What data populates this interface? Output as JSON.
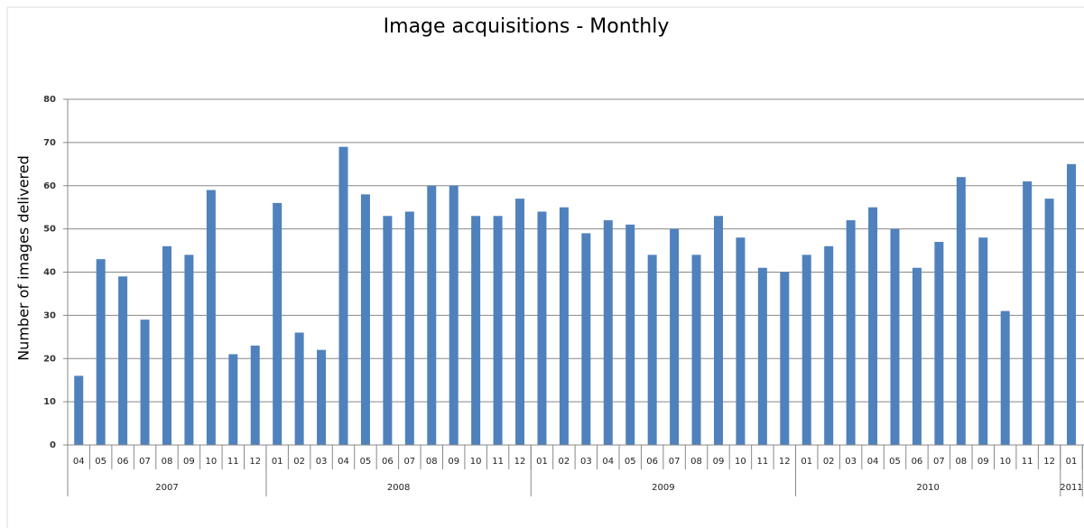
{
  "chart_data": {
    "type": "bar",
    "title": "Image acquisitions - Monthly",
    "y_label": "Number of images delivered",
    "color": "#4f81bd",
    "ylim": [
      0,
      80
    ],
    "yticks": [
      0,
      10,
      20,
      30,
      40,
      50,
      60,
      70,
      80
    ],
    "grid": true,
    "groups": [
      {
        "name": "2007",
        "categories": [
          "04",
          "05",
          "06",
          "07",
          "08",
          "09",
          "10",
          "11",
          "12"
        ],
        "values": [
          16,
          43,
          39,
          29,
          46,
          44,
          59,
          21,
          23
        ]
      },
      {
        "name": "2008",
        "categories": [
          "01",
          "02",
          "03",
          "04",
          "05",
          "06",
          "07",
          "08",
          "09",
          "10",
          "11",
          "12"
        ],
        "values": [
          56,
          26,
          22,
          69,
          58,
          53,
          54,
          60,
          60,
          53,
          53,
          57
        ]
      },
      {
        "name": "2009",
        "categories": [
          "01",
          "02",
          "03",
          "04",
          "05",
          "06",
          "07",
          "08",
          "09",
          "10",
          "11",
          "12"
        ],
        "values": [
          54,
          55,
          49,
          52,
          51,
          44,
          50,
          44,
          53,
          48,
          41,
          40
        ]
      },
      {
        "name": "2010",
        "categories": [
          "01",
          "02",
          "03",
          "04",
          "05",
          "06",
          "07",
          "08",
          "09",
          "10",
          "11",
          "12"
        ],
        "values": [
          44,
          46,
          52,
          55,
          50,
          41,
          47,
          62,
          48,
          31,
          61,
          57
        ]
      },
      {
        "name": "2011",
        "categories": [
          "01"
        ],
        "values": [
          65
        ]
      }
    ]
  }
}
